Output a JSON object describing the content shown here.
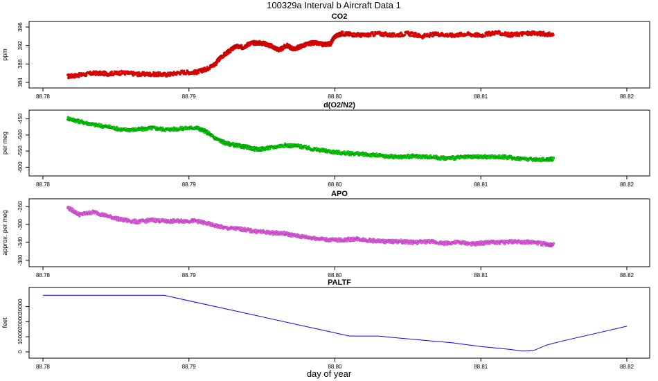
{
  "title": "100329a   Interval b Aircraft Data 1",
  "xlabel": "day of year",
  "colors": {
    "co2": "#ff0000",
    "o2": "#00ee00",
    "apo": "#ee66ee",
    "paltf": "#0000ff"
  },
  "chart_data": [
    {
      "type": "scatter",
      "title": "CO2",
      "ylabel": "ppm",
      "xlim": [
        88.78,
        88.82
      ],
      "ylim": [
        384,
        396
      ],
      "x_ticks": [
        "88.78",
        "88.79",
        "88.80",
        "88.81",
        "88.82"
      ],
      "y_ticks": [
        "384",
        "388",
        "392",
        "396"
      ],
      "series": [
        {
          "points": [
            [
              88.7817,
              385.3
            ],
            [
              88.7825,
              385.6
            ],
            [
              88.7835,
              386.0
            ],
            [
              88.7845,
              385.9
            ],
            [
              88.7855,
              386.1
            ],
            [
              88.7865,
              385.8
            ],
            [
              88.7875,
              385.8
            ],
            [
              88.7885,
              385.7
            ],
            [
              88.7895,
              386.2
            ],
            [
              88.7905,
              386.2
            ],
            [
              88.7912,
              386.9
            ],
            [
              88.7918,
              388.0
            ],
            [
              88.7922,
              389.5
            ],
            [
              88.7927,
              390.6
            ],
            [
              88.7932,
              391.8
            ],
            [
              88.7937,
              391.6
            ],
            [
              88.7942,
              392.5
            ],
            [
              88.7947,
              392.6
            ],
            [
              88.7952,
              392.4
            ],
            [
              88.7957,
              391.8
            ],
            [
              88.7962,
              391.0
            ],
            [
              88.7967,
              392.0
            ],
            [
              88.7972,
              391.2
            ],
            [
              88.7978,
              392.0
            ],
            [
              88.7985,
              392.6
            ],
            [
              88.7992,
              392.2
            ],
            [
              88.7997,
              392.4
            ],
            [
              88.8,
              394.0
            ],
            [
              88.8005,
              394.6
            ],
            [
              88.8012,
              394.4
            ],
            [
              88.802,
              394.2
            ],
            [
              88.803,
              394.6
            ],
            [
              88.804,
              394.2
            ],
            [
              88.805,
              394.6
            ],
            [
              88.806,
              394.0
            ],
            [
              88.807,
              394.5
            ],
            [
              88.808,
              394.2
            ],
            [
              88.809,
              394.5
            ],
            [
              88.81,
              394.2
            ],
            [
              88.811,
              394.8
            ],
            [
              88.812,
              394.3
            ],
            [
              88.813,
              394.6
            ],
            [
              88.814,
              394.6
            ],
            [
              88.815,
              394.3
            ]
          ]
        }
      ]
    },
    {
      "type": "scatter",
      "title": "d(O2/N2)",
      "ylabel": "per meg",
      "xlim": [
        88.78,
        88.82
      ],
      "ylim": [
        -610,
        -440
      ],
      "x_ticks": [
        "88.78",
        "88.79",
        "88.80",
        "88.81",
        "88.82"
      ],
      "y_ticks": [
        "-450",
        "-500",
        "-550",
        "-600"
      ],
      "series": [
        {
          "points": [
            [
              88.7817,
              -448
            ],
            [
              88.7825,
              -458
            ],
            [
              88.7835,
              -468
            ],
            [
              88.7845,
              -475
            ],
            [
              88.7855,
              -484
            ],
            [
              88.7865,
              -483
            ],
            [
              88.7875,
              -478
            ],
            [
              88.7885,
              -483
            ],
            [
              88.7895,
              -480
            ],
            [
              88.7905,
              -477
            ],
            [
              88.7912,
              -490
            ],
            [
              88.7918,
              -510
            ],
            [
              88.7925,
              -525
            ],
            [
              88.7932,
              -532
            ],
            [
              88.794,
              -538
            ],
            [
              88.7947,
              -545
            ],
            [
              88.7955,
              -540
            ],
            [
              88.7965,
              -532
            ],
            [
              88.7975,
              -534
            ],
            [
              88.7985,
              -544
            ],
            [
              88.7995,
              -550
            ],
            [
              88.8005,
              -556
            ],
            [
              88.8015,
              -558
            ],
            [
              88.8025,
              -562
            ],
            [
              88.8035,
              -566
            ],
            [
              88.8045,
              -568
            ],
            [
              88.8055,
              -566
            ],
            [
              88.8065,
              -568
            ],
            [
              88.8075,
              -572
            ],
            [
              88.8085,
              -570
            ],
            [
              88.8095,
              -568
            ],
            [
              88.8105,
              -568
            ],
            [
              88.8115,
              -568
            ],
            [
              88.8125,
              -572
            ],
            [
              88.8135,
              -576
            ],
            [
              88.8145,
              -576
            ],
            [
              88.815,
              -574
            ]
          ]
        }
      ]
    },
    {
      "type": "scatter",
      "title": "APO",
      "ylabel": "approx. per meg",
      "xlim": [
        88.78,
        88.82
      ],
      "ylim": [
        -382,
        -255
      ],
      "x_ticks": [
        "88.78",
        "88.79",
        "88.80",
        "88.81",
        "88.82"
      ],
      "y_ticks": [
        "-260",
        "-300",
        "-340",
        "-380"
      ],
      "series": [
        {
          "points": [
            [
              88.7817,
              -262
            ],
            [
              88.7825,
              -278
            ],
            [
              88.7835,
              -272
            ],
            [
              88.7845,
              -282
            ],
            [
              88.7855,
              -290
            ],
            [
              88.7865,
              -294
            ],
            [
              88.7875,
              -290
            ],
            [
              88.7885,
              -293
            ],
            [
              88.7895,
              -292
            ],
            [
              88.7905,
              -292
            ],
            [
              88.7915,
              -300
            ],
            [
              88.7925,
              -308
            ],
            [
              88.7935,
              -310
            ],
            [
              88.7945,
              -315
            ],
            [
              88.7955,
              -318
            ],
            [
              88.7965,
              -320
            ],
            [
              88.7975,
              -326
            ],
            [
              88.7985,
              -330
            ],
            [
              88.7995,
              -334
            ],
            [
              88.8005,
              -335
            ],
            [
              88.8015,
              -332
            ],
            [
              88.8025,
              -336
            ],
            [
              88.8035,
              -338
            ],
            [
              88.8045,
              -338
            ],
            [
              88.8055,
              -340
            ],
            [
              88.8065,
              -338
            ],
            [
              88.8075,
              -342
            ],
            [
              88.8085,
              -340
            ],
            [
              88.8095,
              -344
            ],
            [
              88.8105,
              -340
            ],
            [
              88.8115,
              -340
            ],
            [
              88.8125,
              -338
            ],
            [
              88.8135,
              -340
            ],
            [
              88.8145,
              -344
            ],
            [
              88.815,
              -346
            ]
          ]
        }
      ]
    },
    {
      "type": "line",
      "title": "PALTF",
      "ylabel": "feet",
      "xlim": [
        88.78,
        88.82
      ],
      "ylim": [
        -500,
        39000
      ],
      "x_ticks": [
        "88.78",
        "88.79",
        "88.80",
        "88.81",
        "88.82"
      ],
      "y_ticks": [
        "0",
        "10000",
        "20000",
        "30000"
      ],
      "series": [
        {
          "points": [
            [
              88.78,
              37500
            ],
            [
              88.7883,
              37500
            ],
            [
              88.801,
              10500
            ],
            [
              88.803,
              10500
            ],
            [
              88.804,
              9500
            ],
            [
              88.808,
              6000
            ],
            [
              88.81,
              3500
            ],
            [
              88.812,
              1600
            ],
            [
              88.8128,
              600
            ],
            [
              88.8132,
              600
            ],
            [
              88.8137,
              1200
            ],
            [
              88.8145,
              4500
            ],
            [
              88.8155,
              7000
            ],
            [
              88.82,
              17000
            ]
          ]
        }
      ]
    }
  ]
}
